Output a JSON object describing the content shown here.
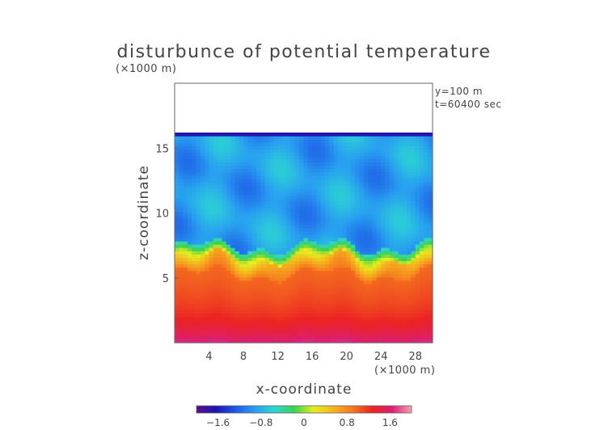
{
  "chart_data": {
    "type": "heatmap",
    "title": "disturbunce of potential temperature",
    "xlabel": "x-coordinate",
    "ylabel": "z-coordinate",
    "x_unit": "(×1000 m)",
    "y_unit": "(×1000 m)",
    "annotations": [
      "y=100 m",
      "t=60400 sec"
    ],
    "x_ticks": [
      4,
      8,
      12,
      16,
      20,
      24,
      28
    ],
    "y_ticks": [
      5,
      10,
      15
    ],
    "xlim": [
      0,
      30
    ],
    "ylim": [
      0,
      20
    ],
    "data_top_z": 16.2,
    "colorbar": {
      "min": -2.0,
      "max": 2.0,
      "ticks": [
        "−1.6",
        "−0.8",
        "0",
        "0.8",
        "1.6"
      ],
      "tick_values": [
        -1.6,
        -0.8,
        0,
        0.8,
        1.6
      ],
      "colors": [
        "#5a0f8c",
        "#1a14b4",
        "#1e5ae6",
        "#28a0f0",
        "#2dd7d2",
        "#3cd250",
        "#e6ec1e",
        "#f5b41e",
        "#f5781e",
        "#eb2323",
        "#dc1e78",
        "#f5a0b4"
      ]
    },
    "field_description": {
      "upper_layer_value": -0.9,
      "lower_layer_value": 0.9,
      "surface_value": 1.7,
      "top_edge_value": -1.7
    }
  }
}
